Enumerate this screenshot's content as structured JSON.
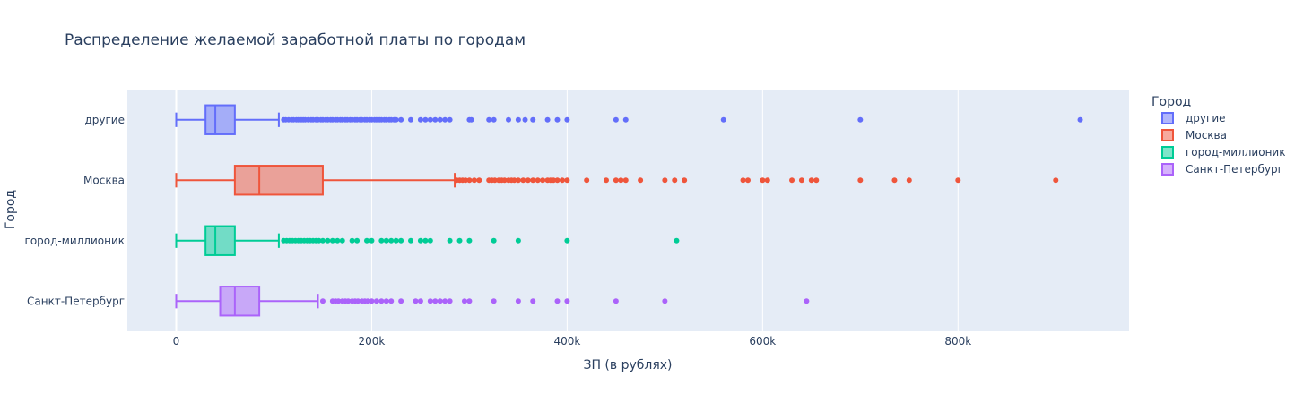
{
  "chart_data": {
    "type": "box",
    "orientation": "horizontal",
    "title": "Распределение желаемой заработной платы по городам",
    "xlabel": "ЗП (в рублях)",
    "ylabel": "Город",
    "xlim": [
      -50000,
      975000
    ],
    "x_ticks": [
      {
        "value": 0,
        "label": "0"
      },
      {
        "value": 200000,
        "label": "200k"
      },
      {
        "value": 400000,
        "label": "400k"
      },
      {
        "value": 600000,
        "label": "600k"
      },
      {
        "value": 800000,
        "label": "800k"
      }
    ],
    "categories": [
      "другие",
      "Москва",
      "город-миллионик",
      "Санкт-Петербург"
    ],
    "grid": true,
    "background": "#e5ecf6",
    "legend": {
      "title": "Город",
      "placement": "right"
    },
    "series": [
      {
        "name": "другие",
        "category": "другие",
        "color": "#636efa",
        "min": 0,
        "q1": 30000,
        "median": 40000,
        "q3": 60000,
        "whisker_high": 105000,
        "outliers": [
          110000,
          112000,
          115000,
          118000,
          120000,
          123000,
          125000,
          128000,
          130000,
          132000,
          135000,
          138000,
          140000,
          143000,
          145000,
          148000,
          150000,
          153000,
          155000,
          158000,
          160000,
          163000,
          165000,
          168000,
          170000,
          173000,
          175000,
          178000,
          180000,
          183000,
          185000,
          188000,
          190000,
          193000,
          195000,
          198000,
          200000,
          203000,
          205000,
          208000,
          210000,
          213000,
          215000,
          218000,
          220000,
          223000,
          225000,
          230000,
          240000,
          250000,
          255000,
          260000,
          265000,
          270000,
          275000,
          280000,
          300000,
          302000,
          320000,
          325000,
          340000,
          350000,
          357000,
          365000,
          380000,
          390000,
          400000,
          450000,
          460000,
          560000,
          700000,
          925000
        ]
      },
      {
        "name": "Москва",
        "category": "Москва",
        "color": "#ef553b",
        "min": 0,
        "q1": 60000,
        "median": 85000,
        "q3": 150000,
        "whisker_high": 285000,
        "outliers": [
          287000,
          290000,
          293000,
          296000,
          300000,
          305000,
          310000,
          320000,
          323000,
          326000,
          330000,
          333000,
          336000,
          340000,
          343000,
          346000,
          350000,
          355000,
          360000,
          365000,
          370000,
          375000,
          380000,
          383000,
          386000,
          390000,
          395000,
          400000,
          420000,
          440000,
          450000,
          455000,
          460000,
          475000,
          500000,
          510000,
          520000,
          580000,
          585000,
          600000,
          605000,
          630000,
          640000,
          650000,
          655000,
          700000,
          735000,
          750000,
          800000,
          900000
        ]
      },
      {
        "name": "город-миллионик",
        "category": "город-миллионик",
        "color": "#00cc96",
        "min": 0,
        "q1": 30000,
        "median": 40000,
        "q3": 60000,
        "whisker_high": 105000,
        "outliers": [
          110000,
          113000,
          116000,
          119000,
          122000,
          125000,
          128000,
          131000,
          134000,
          137000,
          140000,
          143000,
          146000,
          150000,
          155000,
          160000,
          165000,
          170000,
          180000,
          185000,
          195000,
          200000,
          210000,
          215000,
          220000,
          225000,
          230000,
          240000,
          250000,
          255000,
          260000,
          280000,
          290000,
          300000,
          325000,
          350000,
          400000,
          512000
        ]
      },
      {
        "name": "Санкт-Петербург",
        "category": "Санкт-Петербург",
        "color": "#ab63fa",
        "min": 0,
        "q1": 45000,
        "median": 60000,
        "q3": 85000,
        "whisker_high": 145000,
        "outliers": [
          150000,
          160000,
          163000,
          166000,
          170000,
          173000,
          176000,
          180000,
          183000,
          186000,
          190000,
          193000,
          196000,
          200000,
          205000,
          210000,
          215000,
          220000,
          230000,
          245000,
          250000,
          260000,
          265000,
          270000,
          275000,
          280000,
          295000,
          300000,
          325000,
          350000,
          365000,
          390000,
          400000,
          450000,
          500000,
          645000
        ]
      }
    ]
  }
}
